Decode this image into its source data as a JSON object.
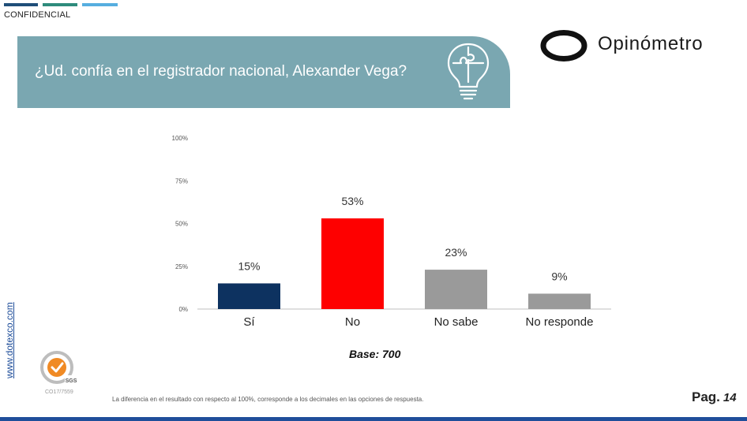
{
  "header": {
    "confidential_label": "CONFIDENCIAL",
    "question": "¿Ud. confía en el registrador nacional,  Alexander Vega?",
    "brand": "Opinómetro"
  },
  "colors": {
    "banner": "#7aa7b1",
    "navy_bar": "#0d3260",
    "red_bar": "#fe0000",
    "gray_bar": "#9a9a9a",
    "top_line_1": "#1f4e79",
    "top_line_2": "#2e8b7c",
    "top_line_3": "#56aee0",
    "bottom_bar": "#1f4e9a"
  },
  "chart_data": {
    "type": "bar",
    "categories": [
      "Sí",
      "No",
      "No sabe",
      "No responde"
    ],
    "values": [
      15,
      53,
      23,
      9
    ],
    "value_labels": [
      "15%",
      "53%",
      "23%",
      "9%"
    ],
    "bar_colors": [
      "#0d3260",
      "#fe0000",
      "#9a9a9a",
      "#9a9a9a"
    ],
    "ylim": [
      0,
      100
    ],
    "yticks": [
      0,
      25,
      50,
      75,
      100
    ],
    "ytick_labels": [
      "0%",
      "25%",
      "50%",
      "75%",
      "100%"
    ],
    "grid": false
  },
  "footer": {
    "base": "Base: 700",
    "url": "www.dotexco.com",
    "cert_code": "CO17/7559",
    "note": "La diferencia en el resultado con respecto al 100%, corresponde a los decimales en las opciones de respuesta.",
    "page_label": "Pag.",
    "page_number": "14"
  }
}
